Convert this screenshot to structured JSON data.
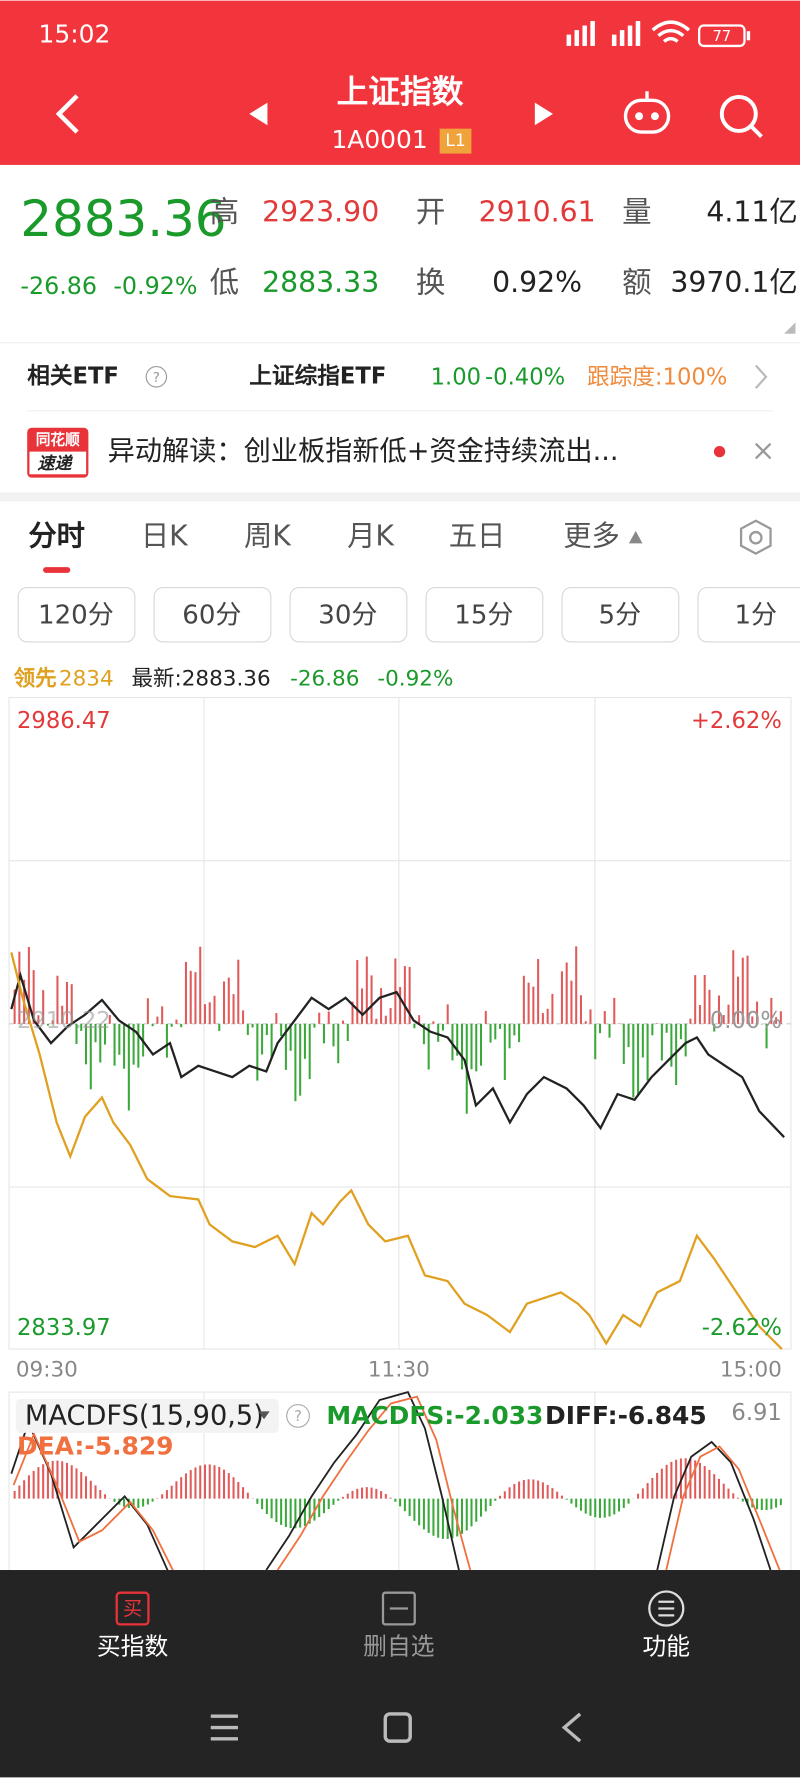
{
  "status": {
    "time": "15:02",
    "battery": "77"
  },
  "header": {
    "title": "上证指数",
    "code": "1A0001",
    "badge": "L1"
  },
  "quote": {
    "price": "2883.36",
    "change": "-26.86",
    "change_pct": "-0.92%",
    "stats": [
      {
        "label": "高",
        "value": "2923.90"
      },
      {
        "label": "开",
        "value": "2910.61"
      },
      {
        "label": "量",
        "value": "4.11亿"
      },
      {
        "label": "低",
        "value": "2883.33"
      },
      {
        "label": "换",
        "value": "0.92%"
      },
      {
        "label": "额",
        "value": "3970.1亿"
      }
    ]
  },
  "etf": {
    "label": "相关ETF",
    "name": "上证综指ETF",
    "price": "1.00",
    "change": "-0.40%",
    "tracking": "跟踪度:100%"
  },
  "news": {
    "logo_top": "同花顺",
    "logo_bottom": "速递",
    "text": "异动解读：创业板指新低+资金持续流出..."
  },
  "tabs": [
    "分时",
    "日K",
    "周K",
    "月K",
    "五日",
    "更多"
  ],
  "periods": [
    "120分",
    "60分",
    "30分",
    "15分",
    "5分",
    "1分"
  ],
  "intraday": {
    "lead_label": "领先",
    "lead": "2834",
    "latest": "最新:2883.36",
    "change": "-26.86",
    "change_pct": "-0.92%",
    "high": "2986.47",
    "high_pct": "+2.62%",
    "mid": "2910.22",
    "mid_pct": "0.00%",
    "low": "2833.97",
    "low_pct": "-2.62%",
    "times": [
      "09:30",
      "11:30",
      "15:00"
    ]
  },
  "macd": {
    "name": "MACDFS(15,90,5)",
    "macdfs": "MACDFS:-2.033",
    "diff": "DIFF:-6.845",
    "dea": "DEA:-5.829",
    "max": "6.91"
  },
  "nav": [
    "买指数",
    "删自选",
    "功能"
  ]
}
